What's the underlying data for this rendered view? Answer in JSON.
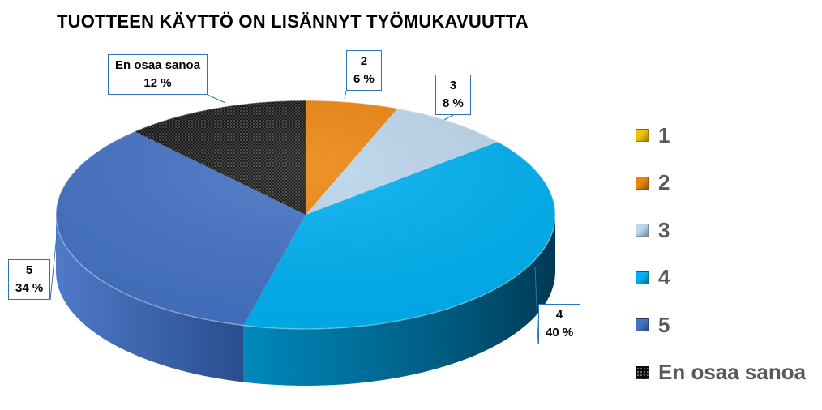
{
  "chart_data": {
    "type": "pie",
    "title": "TUOTTEEN KÄYTTÖ ON LISÄNNYT TYÖMUKAVUUTTA",
    "slices": [
      {
        "label": "1",
        "value": 0,
        "display": "",
        "color": "#f2c200"
      },
      {
        "label": "2",
        "value": 6,
        "display": "6 %",
        "color": "#ec8510"
      },
      {
        "label": "3",
        "value": 8,
        "display": "8 %",
        "color": "#bcd6ec"
      },
      {
        "label": "4",
        "value": 40,
        "display": "40 %",
        "color": "#00b0f0"
      },
      {
        "label": "5",
        "value": 34,
        "display": "34 %",
        "color": "#4472c4"
      },
      {
        "label": "En osaa sanoa",
        "value": 12,
        "display": "12 %",
        "color": "#1a1a1a"
      }
    ],
    "legend": {
      "position": "right"
    }
  }
}
